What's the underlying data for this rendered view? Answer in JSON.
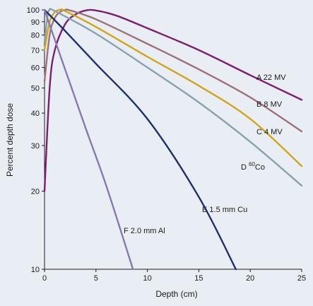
{
  "chart_data": {
    "type": "line",
    "title": "",
    "xlabel": "Depth (cm)",
    "ylabel": "Percent depth dose",
    "xlim": [
      0,
      25
    ],
    "ylim": [
      10,
      100
    ],
    "yscale": "log",
    "grid": false,
    "legend": "none",
    "x_ticks": [
      0,
      5,
      10,
      15,
      20,
      25
    ],
    "x_tick_labels": [
      "0",
      "5",
      "10",
      "15",
      "20",
      "25"
    ],
    "y_ticks": [
      10,
      20,
      30,
      40,
      50,
      60,
      70,
      80,
      90,
      100
    ],
    "y_tick_labels": [
      "10",
      "20",
      "30",
      "40",
      "50",
      "60",
      "70",
      "80",
      "90",
      "100"
    ],
    "background_color": "#e9eef5",
    "series": [
      {
        "label_letter": "A",
        "label_text": "22 MV",
        "color": "#7c1f6e",
        "x": [
          0,
          0.5,
          1,
          2,
          3,
          4,
          5,
          7,
          10,
          15,
          20,
          25
        ],
        "y": [
          20,
          50,
          70,
          88,
          96,
          99.5,
          99.5,
          95,
          85,
          70,
          56,
          45
        ]
      },
      {
        "label_letter": "B",
        "label_text": "8 MV",
        "color": "#9e7178",
        "x": [
          0,
          0.5,
          1,
          1.5,
          2,
          2.5,
          5,
          10,
          15,
          20,
          25
        ],
        "y": [
          53,
          80,
          93,
          98,
          100,
          99.5,
          92,
          74,
          59,
          46,
          34
        ]
      },
      {
        "label_letter": "C",
        "label_text": "4 MV",
        "color": "#d1a518",
        "x": [
          0,
          0.5,
          1,
          1.5,
          2,
          5,
          10,
          15,
          20,
          25
        ],
        "y": [
          70,
          90,
          98,
          100,
          99,
          86,
          66,
          51,
          38,
          25
        ]
      },
      {
        "label_letter": "D",
        "label_sup": "60",
        "label_text": "Co",
        "color": "#8aa1ad",
        "x": [
          0,
          0.3,
          0.5,
          1,
          5,
          10,
          15,
          20,
          25
        ],
        "y": [
          75,
          95,
          100,
          99,
          81,
          60,
          44,
          31,
          21
        ]
      },
      {
        "label_letter": "E",
        "label_text": "1.5 mm Cu",
        "color": "#1d2f6f",
        "x": [
          0,
          2,
          5,
          10,
          15,
          18.6
        ],
        "y": [
          100,
          83,
          62,
          38,
          19,
          10
        ]
      },
      {
        "label_letter": "F",
        "label_text": "2.0 mm Al",
        "color": "#8778b0",
        "x": [
          0,
          2,
          4,
          6,
          8.6
        ],
        "y": [
          100,
          59,
          35,
          21,
          10
        ]
      }
    ]
  }
}
